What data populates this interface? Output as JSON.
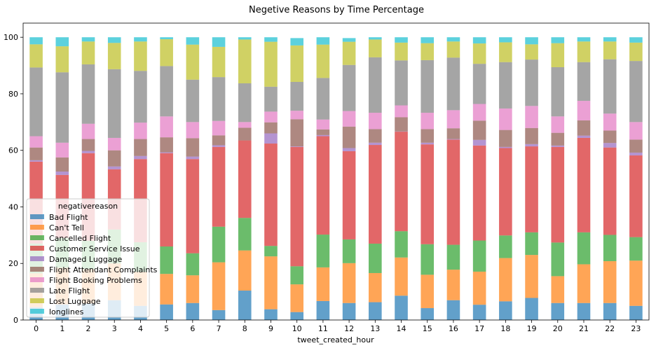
{
  "chart_data": {
    "type": "bar",
    "stacked": true,
    "title": "Negetive Reasons by Time Percentage",
    "xlabel": "tweet_created_hour",
    "ylabel": "",
    "ylim": [
      0,
      100
    ],
    "yticks": [
      0,
      20,
      40,
      60,
      80,
      100
    ],
    "grid": false,
    "bar_alpha": 0.7,
    "legend": {
      "title": "negativereason",
      "placement": "lower-left"
    },
    "categories": [
      "0",
      "1",
      "2",
      "3",
      "4",
      "5",
      "6",
      "7",
      "8",
      "9",
      "10",
      "11",
      "12",
      "13",
      "14",
      "15",
      "16",
      "17",
      "18",
      "19",
      "20",
      "21",
      "22",
      "23"
    ],
    "series": [
      {
        "name": "Bad Flight",
        "color": "#1f77b4",
        "values": [
          4.5,
          5.5,
          5.8,
          7.0,
          5.0,
          5.5,
          6.0,
          3.5,
          10.4,
          3.8,
          2.8,
          6.7,
          6.0,
          6.3,
          8.6,
          4.2,
          7.0,
          5.4,
          6.6,
          7.8,
          6.0,
          6.0,
          6.0,
          5.0
        ]
      },
      {
        "name": "Can't Tell",
        "color": "#ff7f0e",
        "values": [
          12.0,
          13.0,
          12.2,
          13.0,
          12.0,
          10.8,
          9.8,
          16.9,
          14.2,
          18.7,
          9.8,
          11.9,
          14.1,
          10.3,
          13.5,
          11.8,
          10.8,
          11.7,
          15.3,
          15.2,
          9.5,
          13.7,
          14.8,
          16.0
        ]
      },
      {
        "name": "Cancelled Flight",
        "color": "#2ca02c",
        "values": [
          10.5,
          10.5,
          10.0,
          12.0,
          10.5,
          9.7,
          7.8,
          12.6,
          11.5,
          3.7,
          6.4,
          11.6,
          8.4,
          10.4,
          9.3,
          10.8,
          8.8,
          11.0,
          8.0,
          8.0,
          11.9,
          11.3,
          9.3,
          8.3
        ]
      },
      {
        "name": "Customer Service Issue",
        "color": "#d62728",
        "values": [
          29.0,
          22.3,
          31.0,
          21.3,
          29.4,
          33.0,
          33.3,
          28.2,
          27.4,
          36.2,
          42.2,
          34.8,
          31.2,
          34.9,
          35.2,
          35.3,
          37.2,
          33.6,
          30.9,
          30.4,
          33.8,
          33.4,
          30.9,
          28.9
        ]
      },
      {
        "name": "Damaged Luggage",
        "color": "#9467bd",
        "values": [
          0.5,
          1.2,
          0.8,
          1.0,
          1.1,
          0.3,
          0.9,
          0.6,
          0.0,
          3.6,
          0.2,
          0.4,
          1.1,
          0.8,
          0.1,
          0.6,
          0.2,
          2.0,
          0.4,
          0.8,
          0.5,
          0.8,
          1.6,
          1.0
        ]
      },
      {
        "name": "Flight Attendant Complaints",
        "color": "#8c564b",
        "values": [
          4.5,
          5.0,
          4.2,
          5.7,
          6.0,
          5.3,
          6.5,
          3.5,
          4.5,
          3.9,
          9.6,
          2.0,
          7.6,
          4.8,
          5.0,
          4.8,
          3.8,
          6.8,
          6.0,
          5.7,
          4.5,
          5.4,
          4.4,
          4.6
        ]
      },
      {
        "name": "Flight Booking Problems",
        "color": "#e377c2",
        "values": [
          4.0,
          5.2,
          5.4,
          4.4,
          5.8,
          7.4,
          5.7,
          5.1,
          2.0,
          3.8,
          3.0,
          3.5,
          5.5,
          5.8,
          4.2,
          5.8,
          6.4,
          5.9,
          7.6,
          7.8,
          5.8,
          6.9,
          6.0,
          6.2
        ]
      },
      {
        "name": "Late Flight",
        "color": "#7f7f7f",
        "values": [
          24.3,
          24.9,
          21.0,
          24.3,
          18.3,
          17.8,
          15.0,
          15.5,
          13.7,
          8.8,
          10.2,
          14.7,
          16.3,
          19.6,
          15.9,
          18.6,
          18.6,
          14.2,
          16.4,
          16.4,
          17.4,
          13.7,
          19.2,
          21.6
        ]
      },
      {
        "name": "Lost Luggage",
        "color": "#bcbd22",
        "values": [
          8.2,
          9.2,
          8.1,
          9.3,
          10.4,
          9.5,
          12.4,
          10.7,
          15.5,
          15.9,
          12.9,
          11.8,
          8.2,
          6.3,
          6.3,
          6.0,
          5.7,
          7.2,
          7.0,
          5.4,
          8.5,
          7.3,
          6.3,
          6.5
        ]
      },
      {
        "name": "longlines",
        "color": "#17becf",
        "values": [
          2.5,
          3.2,
          1.5,
          2.0,
          1.5,
          0.7,
          2.6,
          3.4,
          0.8,
          1.6,
          2.6,
          2.6,
          1.3,
          0.8,
          1.9,
          2.1,
          1.5,
          2.2,
          1.8,
          2.5,
          2.1,
          1.5,
          1.5,
          1.9
        ]
      }
    ]
  }
}
